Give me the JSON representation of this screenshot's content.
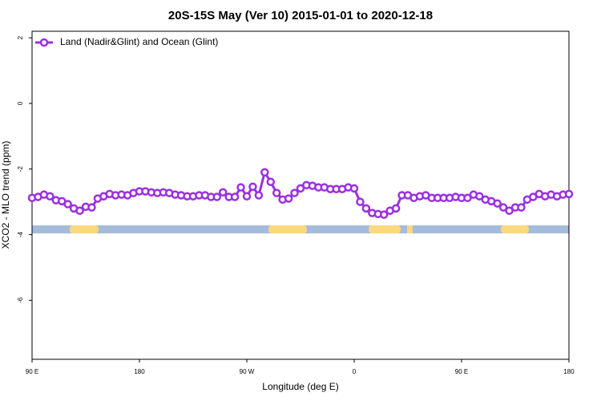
{
  "chart_data": {
    "type": "line",
    "title": "20S-15S May (Ver 10)   2015-01-01 to 2020-12-18",
    "xlabel": "Longitude (deg E)",
    "ylabel": "XCO2 - MLO trend (ppm)",
    "x": [
      90,
      95,
      100,
      105,
      110,
      115,
      120,
      125,
      130,
      135,
      140,
      145,
      150,
      155,
      160,
      165,
      170,
      175,
      180,
      185,
      190,
      195,
      200,
      205,
      210,
      215,
      220,
      225,
      230,
      235,
      240,
      245,
      250,
      255,
      260,
      265,
      270,
      275,
      280,
      285,
      290,
      295,
      300,
      305,
      310,
      315,
      320,
      325,
      330,
      335,
      340,
      345,
      350,
      355,
      360,
      365,
      370,
      375,
      380,
      385,
      390,
      395,
      400,
      405,
      410,
      415,
      420,
      425,
      430,
      435,
      440,
      445,
      450,
      455,
      460,
      465,
      470,
      475,
      480,
      485,
      490,
      495,
      500,
      505,
      510,
      515,
      520,
      525,
      530,
      535,
      540
    ],
    "series": [
      {
        "name": "Land (Nadir&Glint) and Ocean (Glint)",
        "color": "#9b30e0",
        "values": [
          -2.88,
          -2.85,
          -2.78,
          -2.83,
          -2.95,
          -2.98,
          -3.07,
          -3.2,
          -3.27,
          -3.15,
          -3.17,
          -2.9,
          -2.83,
          -2.76,
          -2.8,
          -2.78,
          -2.8,
          -2.73,
          -2.68,
          -2.68,
          -2.71,
          -2.73,
          -2.71,
          -2.73,
          -2.78,
          -2.8,
          -2.83,
          -2.83,
          -2.8,
          -2.8,
          -2.85,
          -2.85,
          -2.71,
          -2.85,
          -2.85,
          -2.56,
          -2.83,
          -2.54,
          -2.8,
          -2.1,
          -2.39,
          -2.73,
          -2.93,
          -2.9,
          -2.73,
          -2.59,
          -2.49,
          -2.51,
          -2.56,
          -2.56,
          -2.61,
          -2.61,
          -2.61,
          -2.56,
          -2.59,
          -3.0,
          -3.2,
          -3.34,
          -3.37,
          -3.39,
          -3.27,
          -3.2,
          -2.8,
          -2.8,
          -2.88,
          -2.83,
          -2.8,
          -2.88,
          -2.88,
          -2.88,
          -2.88,
          -2.85,
          -2.88,
          -2.88,
          -2.78,
          -2.83,
          -2.93,
          -2.98,
          -3.05,
          -3.17,
          -3.27,
          -3.17,
          -3.17,
          -2.93,
          -2.85,
          -2.76,
          -2.83,
          -2.78,
          -2.83,
          -2.78,
          -2.76
        ]
      }
    ],
    "xlim": [
      90,
      540
    ],
    "xticks": [
      {
        "value": 90,
        "label": "90 E"
      },
      180,
      {
        "value": 270,
        "label": "90 W"
      },
      {
        "value": 360,
        "label": "0"
      },
      {
        "value": 450,
        "label": "90 E"
      },
      {
        "value": 540,
        "label": "180"
      }
    ],
    "ylim": [
      -7.8,
      2.2
    ],
    "yticks": [
      2,
      0,
      -2,
      -4,
      -6
    ],
    "legend": "upper left"
  }
}
